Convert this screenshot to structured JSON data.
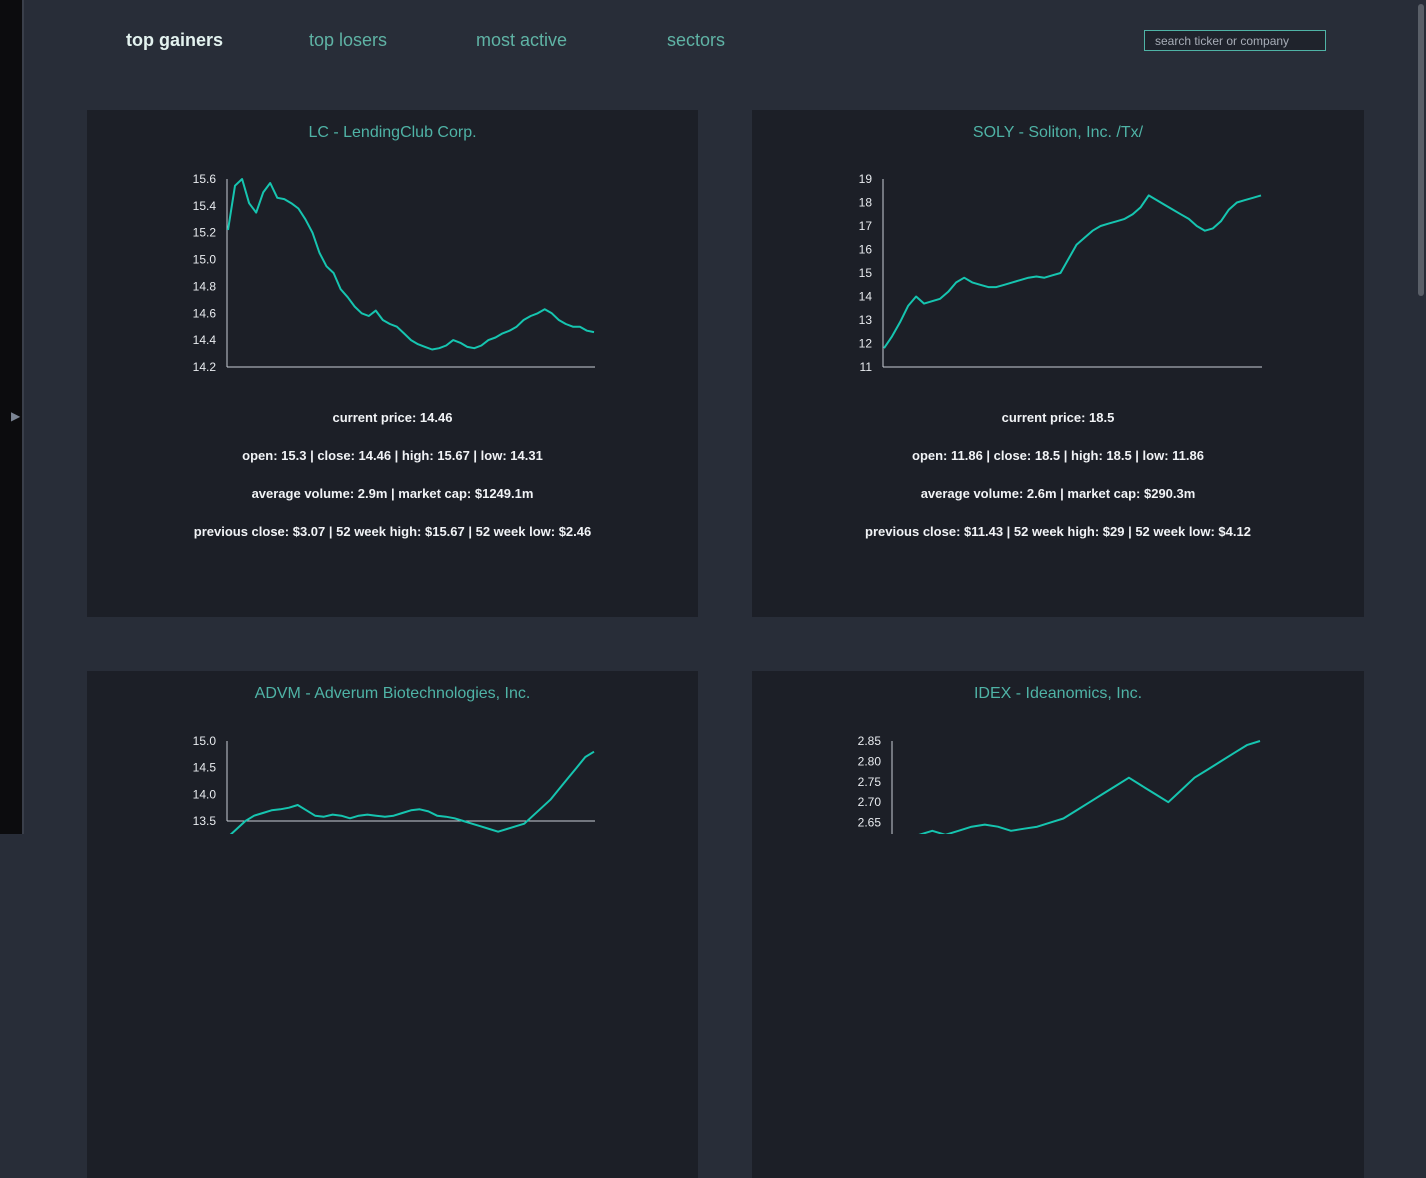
{
  "sidebar": {
    "expand_glyph": "▶"
  },
  "nav": {
    "tabs": [
      {
        "label": "top gainers",
        "active": true
      },
      {
        "label": "top losers",
        "active": false
      },
      {
        "label": "most active",
        "active": false
      },
      {
        "label": "sectors",
        "active": false
      }
    ],
    "search_placeholder": "search ticker or company"
  },
  "accent_color": "#16c5b0",
  "cards": [
    {
      "title": "LC - LendingClub Corp.",
      "current_price": "current price: 14.46",
      "ohlc": "open: 15.3 | close: 14.46 | high: 15.67 | low: 14.31",
      "volume_cap": "average volume: 2.9m | market cap: $1249.1m",
      "history": "previous close: $3.07 | 52 week high: $15.67 | 52 week low: $2.46"
    },
    {
      "title": "SOLY - Soliton, Inc. /Tx/",
      "current_price": "current price: 18.5",
      "ohlc": "open: 11.86 | close: 18.5 | high: 18.5 | low: 11.86",
      "volume_cap": "average volume: 2.6m | market cap: $290.3m",
      "history": "previous close: $11.43 | 52 week high: $29 | 52 week low: $4.12"
    },
    {
      "title": "ADVM - Adverum Biotechnologies, Inc.",
      "current_price": "",
      "ohlc": "",
      "volume_cap": "",
      "history": ""
    },
    {
      "title": "IDEX - Ideanomics, Inc.",
      "current_price": "",
      "ohlc": "",
      "volume_cap": "",
      "history": ""
    }
  ],
  "chart_data": [
    {
      "type": "line",
      "series": [
        {
          "values": [
            15.22,
            15.55,
            15.6,
            15.42,
            15.35,
            15.5,
            15.57,
            15.46,
            15.45,
            15.42,
            15.38,
            15.3,
            15.2,
            15.05,
            14.95,
            14.9,
            14.78,
            14.72,
            14.65,
            14.6,
            14.58,
            14.62,
            14.55,
            14.52,
            14.5,
            14.45,
            14.4,
            14.37,
            14.35,
            14.33,
            14.34,
            14.36,
            14.4,
            14.38,
            14.35,
            14.34,
            14.36,
            14.4,
            14.42,
            14.45,
            14.47,
            14.5,
            14.55,
            14.58,
            14.6,
            14.63,
            14.6,
            14.55,
            14.52,
            14.5,
            14.5,
            14.47,
            14.46
          ]
        }
      ],
      "y_ticks": [
        "14.2",
        "14.4",
        "14.6",
        "14.8",
        "15.0",
        "15.2",
        "15.4",
        "15.6"
      ],
      "ylim": [
        14.2,
        15.6
      ]
    },
    {
      "type": "line",
      "series": [
        {
          "values": [
            11.8,
            12.3,
            12.9,
            13.6,
            14.0,
            13.7,
            13.8,
            13.9,
            14.2,
            14.6,
            14.8,
            14.6,
            14.5,
            14.4,
            14.4,
            14.5,
            14.6,
            14.7,
            14.8,
            14.85,
            14.8,
            14.9,
            15.0,
            15.6,
            16.2,
            16.5,
            16.8,
            17.0,
            17.1,
            17.2,
            17.3,
            17.5,
            17.8,
            18.3,
            18.1,
            17.9,
            17.7,
            17.5,
            17.3,
            17.0,
            16.8,
            16.9,
            17.2,
            17.7,
            18.0,
            18.1,
            18.2,
            18.3
          ]
        }
      ],
      "y_ticks": [
        "11",
        "12",
        "13",
        "14",
        "15",
        "16",
        "17",
        "18",
        "19"
      ],
      "ylim": [
        11,
        19
      ]
    },
    {
      "type": "line",
      "series": [
        {
          "values": [
            13.2,
            13.35,
            13.5,
            13.6,
            13.65,
            13.7,
            13.72,
            13.75,
            13.8,
            13.7,
            13.6,
            13.58,
            13.62,
            13.6,
            13.55,
            13.6,
            13.62,
            13.6,
            13.58,
            13.6,
            13.65,
            13.7,
            13.72,
            13.68,
            13.6,
            13.58,
            13.55,
            13.5,
            13.45,
            13.4,
            13.35,
            13.3,
            13.35,
            13.4,
            13.45,
            13.6,
            13.75,
            13.9,
            14.1,
            14.3,
            14.5,
            14.7,
            14.8
          ]
        }
      ],
      "y_ticks": [
        "13.5",
        "14.0",
        "14.5",
        "15.0"
      ],
      "ylim": [
        13.5,
        15.0
      ]
    },
    {
      "type": "line",
      "series": [
        {
          "values": [
            2.6,
            2.61,
            2.62,
            2.63,
            2.62,
            2.63,
            2.64,
            2.645,
            2.64,
            2.63,
            2.635,
            2.64,
            2.65,
            2.66,
            2.68,
            2.7,
            2.72,
            2.74,
            2.76,
            2.74,
            2.72,
            2.7,
            2.73,
            2.76,
            2.78,
            2.8,
            2.82,
            2.84,
            2.85
          ]
        }
      ],
      "y_ticks": [
        "2.65",
        "2.70",
        "2.75",
        "2.80",
        "2.85"
      ],
      "ylim": [
        2.6,
        2.85
      ]
    }
  ]
}
